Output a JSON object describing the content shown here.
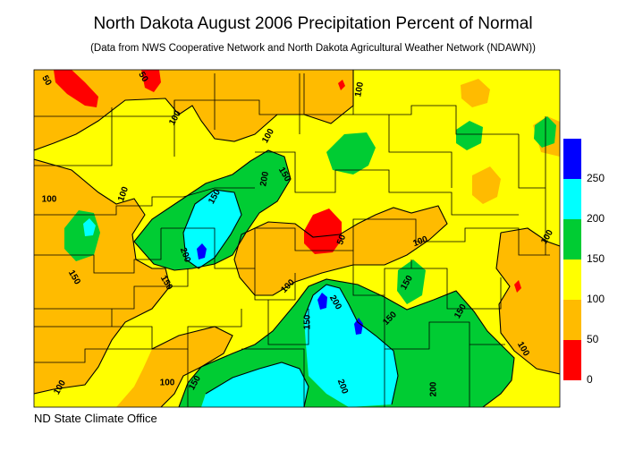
{
  "title": "North Dakota August 2006 Precipitation Percent of Normal",
  "subtitle": "(Data from NWS Cooperative Network and North Dakota Agricultural Weather Network (NDAWN))",
  "footer": "ND State Climate Office",
  "legend": {
    "bins": [
      {
        "label": "0",
        "from": 0,
        "to": 50,
        "color": "#ff0000"
      },
      {
        "label": "50",
        "from": 50,
        "to": 100,
        "color": "#ffbb00"
      },
      {
        "label": "100",
        "from": 100,
        "to": 150,
        "color": "#ffff00"
      },
      {
        "label": "150",
        "from": 150,
        "to": 200,
        "color": "#00cc33"
      },
      {
        "label": "200",
        "from": 200,
        "to": 250,
        "color": "#00ffff"
      },
      {
        "label": "250",
        "from": 250,
        "to": 300,
        "color": "#0000ff"
      }
    ]
  },
  "colors": {
    "background_ge100": "#ffff00",
    "lt100": "#ffbb00",
    "lt50": "#ff0000",
    "ge150": "#00cc33",
    "ge200": "#00ffff",
    "ge250": "#0000ff"
  },
  "contour_labels": [
    "50",
    "50",
    "100",
    "100",
    "100",
    "100",
    "100",
    "100",
    "100",
    "100",
    "100",
    "100",
    "100",
    "150",
    "150",
    "150",
    "150",
    "150",
    "150",
    "150",
    "150",
    "150",
    "200",
    "200",
    "200",
    "200",
    "200",
    "50"
  ]
}
